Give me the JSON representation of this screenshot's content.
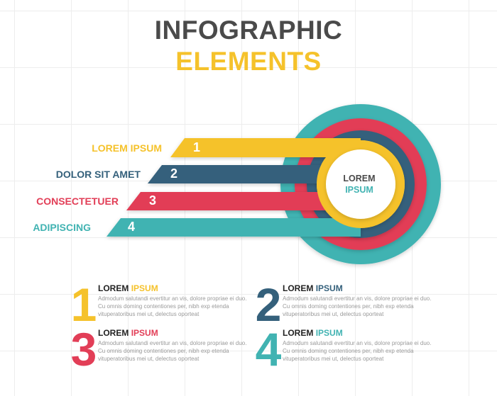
{
  "title": {
    "line1": "INFOGRAPHIC",
    "line2": "ELEMENTS"
  },
  "colors": {
    "yellow": "#f5c22b",
    "blue": "#34607b",
    "red": "#e23e57",
    "teal": "#41b3b2",
    "dark_text": "#4a4a4a"
  },
  "center": {
    "word1": "LOREM",
    "word2": "IPSUM"
  },
  "steps": [
    {
      "label": "LOREM IPSUM",
      "number": "1"
    },
    {
      "label": "DOLOR SIT AMET",
      "number": "2"
    },
    {
      "label": "CONSECTETUER",
      "number": "3"
    },
    {
      "label": "ADIPISCING",
      "number": "4"
    }
  ],
  "cards": [
    {
      "number": "1",
      "head_a": "LOREM",
      "head_b": "IPSUM",
      "body": "Admodum salutandi evertitur an vis, dolore propriae ei duo. Cu omnis doming contentiones per, nibh exp etenda vituperatoribus mei ut, delectus oporteat"
    },
    {
      "number": "2",
      "head_a": "LOREM",
      "head_b": "IPSUM",
      "body": "Admodum salutandi evertitur an vis, dolore propriae ei duo. Cu omnis doming contentiones per, nibh exp etenda vituperatoribus mei ut, delectus oporteat"
    },
    {
      "number": "3",
      "head_a": "LOREM",
      "head_b": "IPSUM",
      "body": "Admodum salutandi evertitur an vis, dolore propriae ei duo. Cu omnis doming contentiones per, nibh exp etenda vituperatoribus mei ut, delectus oporteat"
    },
    {
      "number": "4",
      "head_a": "LOREM",
      "head_b": "IPSUM",
      "body": "Admodum salutandi evertitur an vis, dolore propriae ei duo. Cu omnis doming contentiones per, nibh exp etenda vituperatoribus mei ut, delectus oporteat"
    }
  ]
}
